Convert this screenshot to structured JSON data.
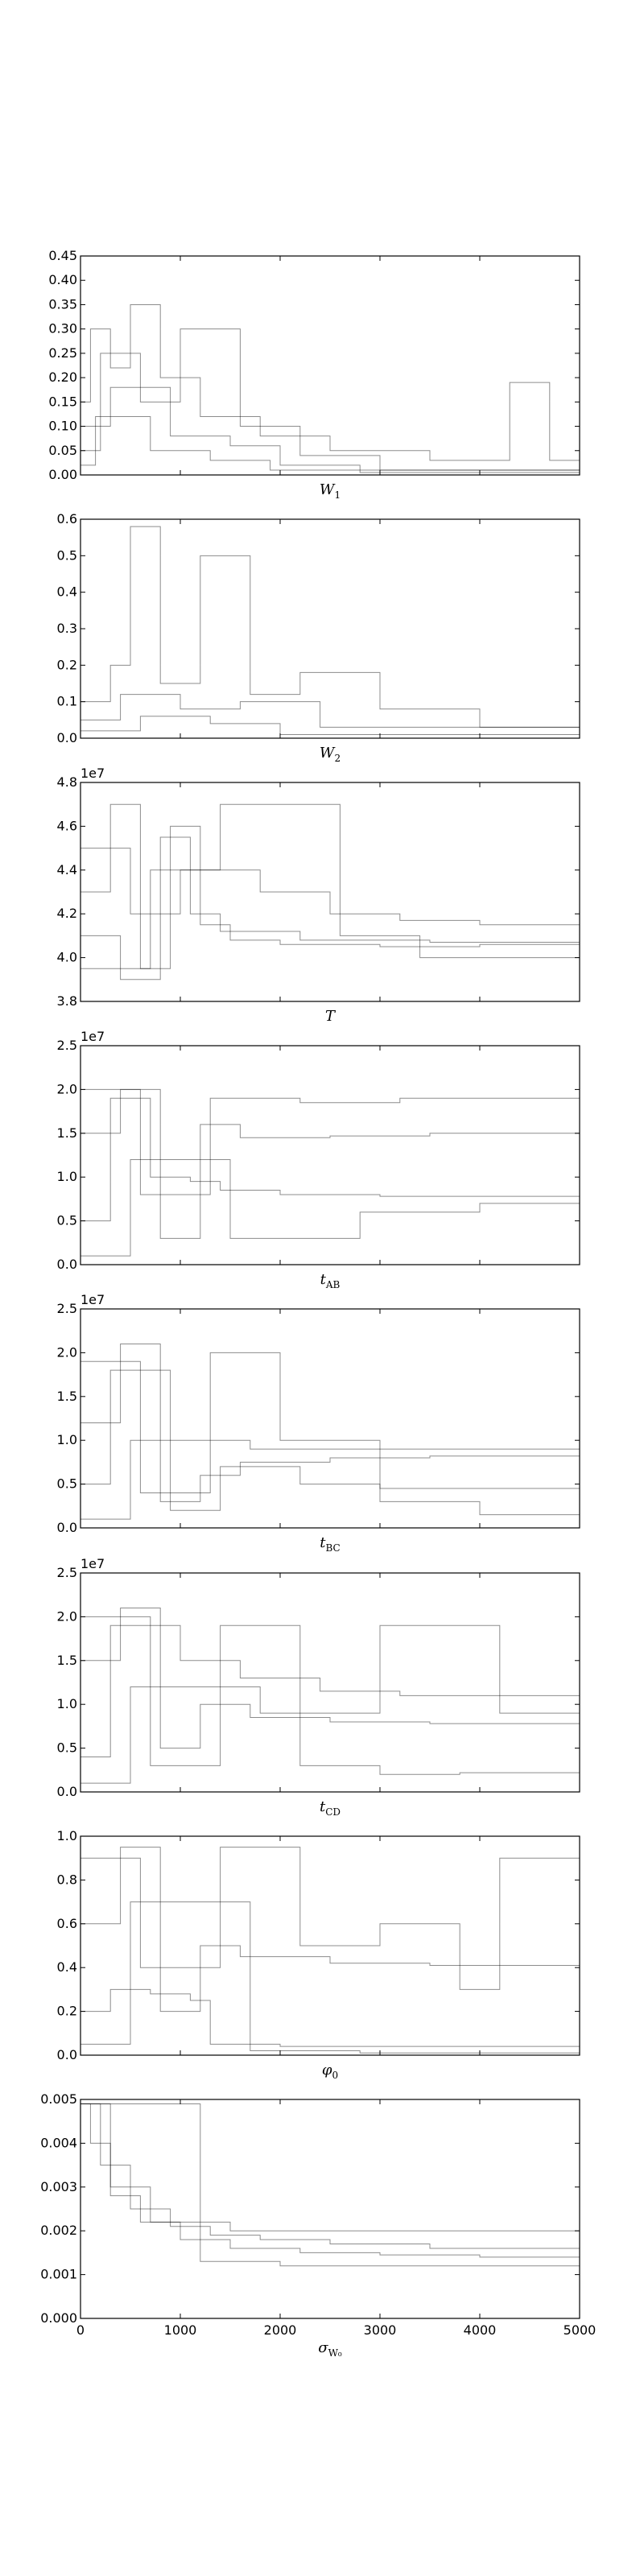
{
  "chart_data": [
    {
      "type": "line",
      "xlim": [
        0,
        5000
      ],
      "ylim": [
        0,
        0.45
      ],
      "yticks": [
        "0.00",
        "0.05",
        "0.10",
        "0.15",
        "0.20",
        "0.25",
        "0.30",
        "0.35",
        "0.40",
        "0.45"
      ],
      "offset_text": "",
      "xlabel": {
        "main": "W",
        "sub": "1"
      },
      "series": [
        {
          "x": [
            0,
            100,
            300,
            500,
            800,
            1200,
            1800,
            2500,
            3500,
            4200,
            4300,
            4500,
            4700,
            5000
          ],
          "values": [
            0.15,
            0.3,
            0.22,
            0.35,
            0.2,
            0.12,
            0.08,
            0.05,
            0.03,
            0.03,
            0.19,
            0.19,
            0.03,
            0.03
          ]
        },
        {
          "x": [
            0,
            200,
            600,
            1000,
            1600,
            2200,
            3000,
            5000
          ],
          "values": [
            0.05,
            0.25,
            0.15,
            0.3,
            0.1,
            0.04,
            0.01,
            0.01
          ]
        },
        {
          "x": [
            0,
            300,
            900,
            1500,
            2000,
            2800,
            5000
          ],
          "values": [
            0.1,
            0.18,
            0.08,
            0.06,
            0.02,
            0.005,
            0.005
          ]
        },
        {
          "x": [
            0,
            150,
            700,
            1300,
            1900,
            5000
          ],
          "values": [
            0.02,
            0.12,
            0.05,
            0.03,
            0.01,
            0.01
          ]
        }
      ]
    },
    {
      "type": "line",
      "xlim": [
        0,
        5000
      ],
      "ylim": [
        0,
        0.6
      ],
      "yticks": [
        "0.0",
        "0.1",
        "0.2",
        "0.3",
        "0.4",
        "0.5",
        "0.6"
      ],
      "offset_text": "",
      "xlabel": {
        "main": "W",
        "sub": "2"
      },
      "series": [
        {
          "x": [
            0,
            300,
            500,
            800,
            1200,
            1700,
            2200,
            3000,
            4000,
            5000
          ],
          "values": [
            0.1,
            0.2,
            0.58,
            0.15,
            0.5,
            0.12,
            0.18,
            0.08,
            0.03,
            0.05
          ]
        },
        {
          "x": [
            0,
            400,
            1000,
            1600,
            2400,
            5000
          ],
          "values": [
            0.05,
            0.12,
            0.08,
            0.1,
            0.03,
            0.03
          ]
        },
        {
          "x": [
            0,
            600,
            1300,
            2000,
            5000
          ],
          "values": [
            0.02,
            0.06,
            0.04,
            0.01,
            0.01
          ]
        }
      ]
    },
    {
      "type": "line",
      "xlim": [
        0,
        5000
      ],
      "ylim": [
        3.8,
        4.8
      ],
      "yticks": [
        "3.8",
        "4.0",
        "4.2",
        "4.4",
        "4.6",
        "4.8"
      ],
      "offset_text": "1e7",
      "xlabel": {
        "main": "T",
        "sub": ""
      },
      "series": [
        {
          "x": [
            0,
            300,
            600,
            900,
            1200,
            1500,
            2000,
            3000,
            4000,
            5000
          ],
          "values": [
            4.3,
            4.7,
            3.95,
            4.6,
            4.15,
            4.08,
            4.06,
            4.05,
            4.06,
            4.05
          ]
        },
        {
          "x": [
            0,
            400,
            800,
            1100,
            1400,
            2200,
            3500,
            5000
          ],
          "values": [
            4.1,
            3.9,
            4.55,
            4.2,
            4.12,
            4.08,
            4.07,
            4.07
          ]
        },
        {
          "x": [
            0,
            500,
            1000,
            1800,
            2500,
            3200,
            4000,
            5000
          ],
          "values": [
            4.5,
            4.2,
            4.4,
            4.3,
            4.2,
            4.17,
            4.15,
            4.15
          ]
        },
        {
          "x": [
            0,
            700,
            1400,
            2600,
            3400,
            5000
          ],
          "values": [
            3.95,
            4.4,
            4.7,
            4.1,
            4.0,
            3.98
          ]
        }
      ]
    },
    {
      "type": "line",
      "xlim": [
        0,
        5000
      ],
      "ylim": [
        0.0,
        2.5
      ],
      "yticks": [
        "0.0",
        "0.5",
        "1.0",
        "1.5",
        "2.0",
        "2.5"
      ],
      "offset_text": "1e7",
      "xlabel": {
        "main": "t",
        "sub": "AB"
      },
      "series": [
        {
          "x": [
            0,
            400,
            800,
            1200,
            1600,
            2500,
            3500,
            5000
          ],
          "values": [
            1.5,
            2.0,
            0.3,
            1.6,
            1.45,
            1.47,
            1.5,
            1.48
          ]
        },
        {
          "x": [
            0,
            300,
            700,
            1100,
            1400,
            2000,
            3000,
            5000
          ],
          "values": [
            0.5,
            1.9,
            1.0,
            0.95,
            0.85,
            0.8,
            0.78,
            0.8
          ]
        },
        {
          "x": [
            0,
            600,
            1300,
            2200,
            3200,
            5000
          ],
          "values": [
            2.0,
            0.8,
            1.9,
            1.85,
            1.9,
            1.92
          ]
        },
        {
          "x": [
            0,
            500,
            1500,
            2800,
            4000,
            5000
          ],
          "values": [
            0.1,
            1.2,
            0.3,
            0.6,
            0.7,
            0.7
          ]
        }
      ]
    },
    {
      "type": "line",
      "xlim": [
        0,
        5000
      ],
      "ylim": [
        0.0,
        2.5
      ],
      "yticks": [
        "0.0",
        "0.5",
        "1.0",
        "1.5",
        "2.0",
        "2.5"
      ],
      "offset_text": "1e7",
      "xlabel": {
        "main": "t",
        "sub": "BC"
      },
      "series": [
        {
          "x": [
            0,
            400,
            800,
            1200,
            1600,
            2500,
            3500,
            5000
          ],
          "values": [
            1.2,
            2.1,
            0.3,
            0.6,
            0.75,
            0.8,
            0.82,
            0.8
          ]
        },
        {
          "x": [
            0,
            300,
            900,
            1400,
            2200,
            3000,
            5000
          ],
          "values": [
            0.5,
            1.8,
            0.2,
            0.7,
            0.5,
            0.45,
            0.45
          ]
        },
        {
          "x": [
            0,
            600,
            1300,
            2000,
            3000,
            4000,
            5000
          ],
          "values": [
            1.9,
            0.4,
            2.0,
            1.0,
            0.3,
            0.15,
            0.15
          ]
        },
        {
          "x": [
            0,
            500,
            1700,
            2800,
            5000
          ],
          "values": [
            0.1,
            1.0,
            0.9,
            0.9,
            0.92
          ]
        }
      ]
    },
    {
      "type": "line",
      "xlim": [
        0,
        5000
      ],
      "ylim": [
        0.0,
        2.5
      ],
      "yticks": [
        "0.0",
        "0.5",
        "1.0",
        "1.5",
        "2.0",
        "2.5"
      ],
      "offset_text": "1e7",
      "xlabel": {
        "main": "t",
        "sub": "CD"
      },
      "series": [
        {
          "x": [
            0,
            400,
            800,
            1200,
            1700,
            2500,
            3500,
            5000
          ],
          "values": [
            1.5,
            2.1,
            0.5,
            1.0,
            0.85,
            0.8,
            0.78,
            0.8
          ]
        },
        {
          "x": [
            0,
            300,
            1000,
            1600,
            2400,
            3200,
            5000
          ],
          "values": [
            0.4,
            1.9,
            1.5,
            1.3,
            1.15,
            1.1,
            1.1
          ]
        },
        {
          "x": [
            0,
            700,
            1400,
            2200,
            3000,
            3800,
            5000
          ],
          "values": [
            2.0,
            0.3,
            1.9,
            0.3,
            0.2,
            0.22,
            0.2
          ]
        },
        {
          "x": [
            0,
            500,
            1800,
            3000,
            3800,
            4200,
            5000
          ],
          "values": [
            0.1,
            1.2,
            0.9,
            1.9,
            1.9,
            0.9,
            0.9
          ]
        }
      ]
    },
    {
      "type": "line",
      "xlim": [
        0,
        5000
      ],
      "ylim": [
        0.0,
        1.0
      ],
      "yticks": [
        "0.0",
        "0.2",
        "0.4",
        "0.6",
        "0.8",
        "1.0"
      ],
      "offset_text": "",
      "xlabel": {
        "main": "φ",
        "sub": "0"
      },
      "series": [
        {
          "x": [
            0,
            400,
            800,
            1200,
            1600,
            2500,
            3500,
            5000
          ],
          "values": [
            0.6,
            0.95,
            0.2,
            0.5,
            0.45,
            0.42,
            0.41,
            0.42
          ]
        },
        {
          "x": [
            0,
            300,
            700,
            1100,
            1300,
            2000,
            3000,
            5000
          ],
          "values": [
            0.2,
            0.3,
            0.28,
            0.25,
            0.05,
            0.04,
            0.04,
            0.04
          ]
        },
        {
          "x": [
            0,
            600,
            1400,
            2200,
            3000,
            3800,
            4200,
            5000
          ],
          "values": [
            0.9,
            0.4,
            0.95,
            0.5,
            0.6,
            0.3,
            0.9,
            0.3
          ]
        },
        {
          "x": [
            0,
            500,
            1700,
            2800,
            5000
          ],
          "values": [
            0.05,
            0.7,
            0.02,
            0.01,
            0.01
          ]
        }
      ]
    },
    {
      "type": "line",
      "xlim": [
        0,
        5000
      ],
      "ylim": [
        0.0,
        0.005
      ],
      "yticks": [
        "0.000",
        "0.001",
        "0.002",
        "0.003",
        "0.004",
        "0.005"
      ],
      "xticks": [
        "0",
        "1000",
        "2000",
        "3000",
        "4000",
        "5000"
      ],
      "offset_text": "",
      "xlabel": {
        "main": "σ",
        "sub": "W₀"
      },
      "series": [
        {
          "x": [
            0,
            100,
            300,
            600,
            1000,
            1500,
            2200,
            3000,
            4000,
            5000
          ],
          "values": [
            0.0049,
            0.004,
            0.0028,
            0.0022,
            0.0018,
            0.0016,
            0.0015,
            0.00145,
            0.0014,
            0.0014
          ]
        },
        {
          "x": [
            0,
            200,
            500,
            900,
            1300,
            1800,
            2500,
            3500,
            5000
          ],
          "values": [
            0.0049,
            0.0035,
            0.0025,
            0.0021,
            0.0019,
            0.0018,
            0.0017,
            0.0016,
            0.0015
          ]
        },
        {
          "x": [
            0,
            50,
            400,
            800,
            1200,
            2000,
            3000,
            5000
          ],
          "values": [
            0.0049,
            0.0049,
            0.0049,
            0.0049,
            0.0013,
            0.0012,
            0.0012,
            0.0012
          ]
        },
        {
          "x": [
            0,
            300,
            700,
            1500,
            2500,
            3500,
            5000
          ],
          "values": [
            0.0049,
            0.003,
            0.0022,
            0.002,
            0.002,
            0.002,
            0.002
          ]
        }
      ]
    }
  ]
}
